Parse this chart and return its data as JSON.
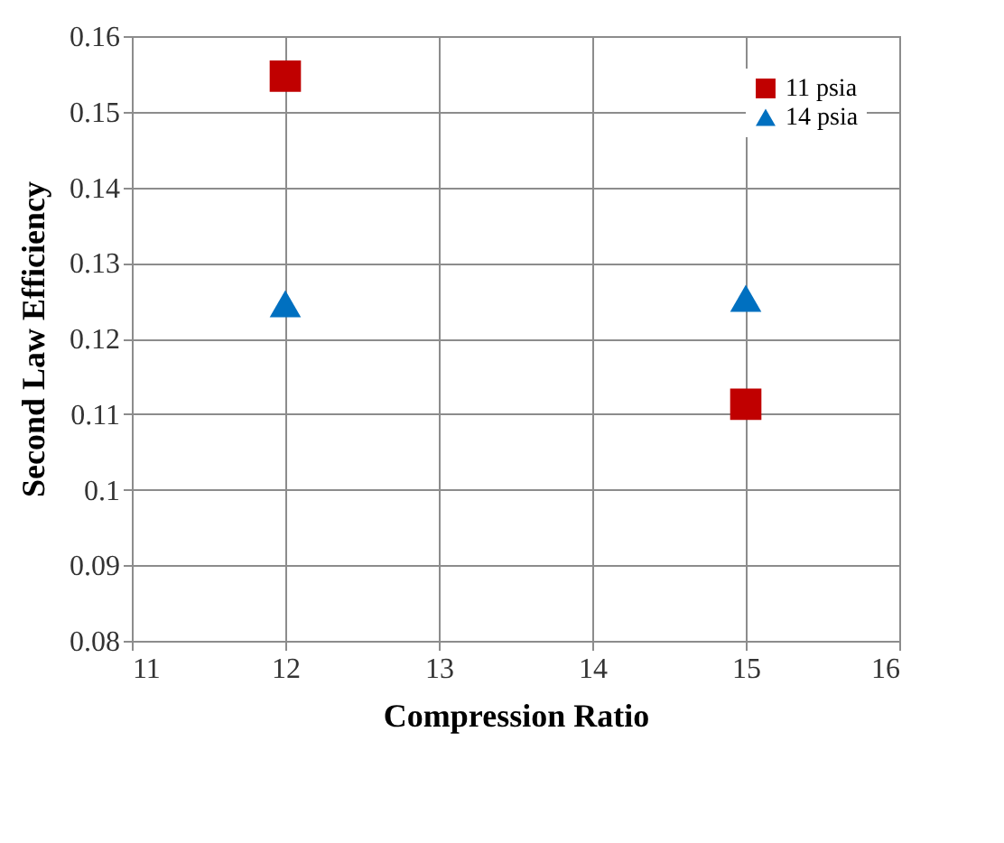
{
  "chart_data": {
    "type": "scatter",
    "xlabel": "Compression Ratio",
    "ylabel": "Second Law Efficiency",
    "x": [
      12,
      15
    ],
    "series": [
      {
        "name": "11 psia",
        "color": "#c00000",
        "marker": "square",
        "values": [
          0.1547,
          0.1113
        ]
      },
      {
        "name": "14 psia",
        "color": "#0070c0",
        "marker": "triangle",
        "values": [
          0.1246,
          0.1253
        ]
      }
    ],
    "xlim": [
      11,
      16
    ],
    "xticks": [
      11,
      12,
      13,
      14,
      15,
      16
    ],
    "ylim": [
      0.08,
      0.16
    ],
    "yticks": [
      0.08,
      0.09,
      0.1,
      0.11,
      0.12,
      0.13,
      0.14,
      0.15,
      0.16
    ],
    "grid": true,
    "legend": "top right"
  }
}
